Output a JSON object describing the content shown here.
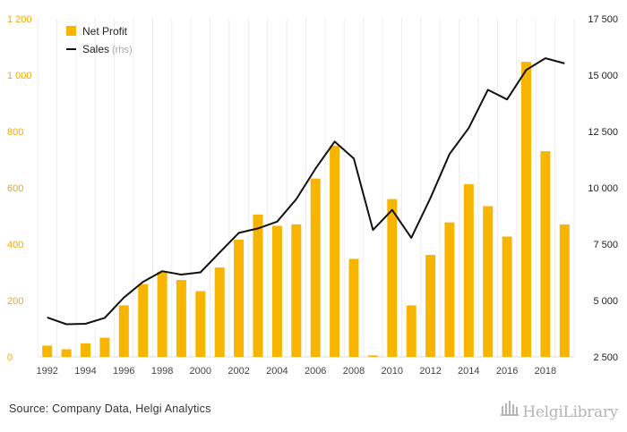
{
  "chart_data": {
    "type": "bar+line",
    "categories": [
      "1992",
      "1993",
      "1994",
      "1995",
      "1996",
      "1997",
      "1998",
      "1999",
      "2000",
      "2001",
      "2002",
      "2003",
      "2004",
      "2005",
      "2006",
      "2007",
      "2008",
      "2009",
      "2010",
      "2011",
      "2012",
      "2013",
      "2014",
      "2015",
      "2016",
      "2017",
      "2018",
      "2019"
    ],
    "x_tick_labels": [
      "1992",
      "1994",
      "1996",
      "1998",
      "2000",
      "2002",
      "2004",
      "2006",
      "2008",
      "2010",
      "2012",
      "2014",
      "2016",
      "2018"
    ],
    "series": [
      {
        "name": "Net Profit",
        "axis": "left",
        "kind": "bar",
        "color": "#f7b500",
        "values": [
          40,
          27,
          48,
          68,
          183,
          258,
          303,
          273,
          233,
          317,
          416,
          505,
          465,
          470,
          633,
          750,
          348,
          5,
          560,
          183,
          362,
          477,
          613,
          535,
          427,
          1047,
          730,
          470
        ]
      },
      {
        "name": "Sales",
        "note": "(rhs)",
        "axis": "right",
        "kind": "line",
        "color": "#111111",
        "values": [
          4250,
          3950,
          3970,
          4230,
          5130,
          5830,
          6300,
          6150,
          6250,
          7130,
          8000,
          8200,
          8500,
          9500,
          10850,
          12050,
          11300,
          8130,
          9020,
          7780,
          9550,
          11500,
          12650,
          14350,
          13920,
          15230,
          15750,
          15520
        ]
      }
    ],
    "y_left": {
      "min": 0,
      "max": 1200,
      "ticks": [
        "0",
        "200",
        "400",
        "600",
        "800",
        "1 000",
        "1 200"
      ],
      "color": "#f2a900"
    },
    "y_right": {
      "min": 2500,
      "max": 17500,
      "ticks": [
        "2 500",
        "5 000",
        "7 500",
        "10 000",
        "12 500",
        "15 000",
        "17 500"
      ]
    },
    "legend": "top-left",
    "grid": "vertical"
  },
  "footer": {
    "source": "Source: Company Data, Helgi Analytics",
    "logo": "HelgiLibrary"
  }
}
